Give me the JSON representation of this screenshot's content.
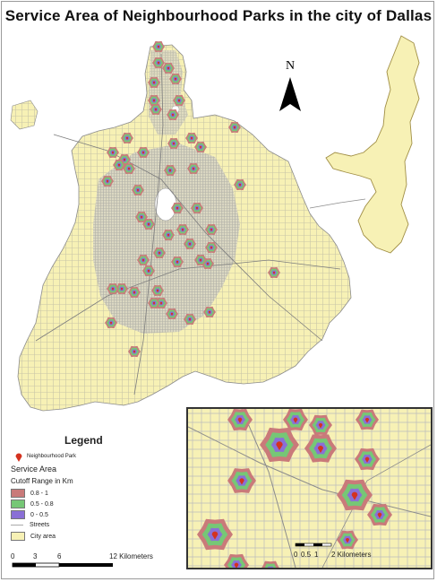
{
  "title": "Service Area of Neighbourhood Parks in the city of Dallas",
  "north_label": "N",
  "legend": {
    "heading": "Legend",
    "park_label": "Neighbourhood Park",
    "service_area_label": "Service Area",
    "cutoff_label": "Cutoff Range in Km",
    "ranges": [
      {
        "label": "0.8 - 1",
        "color": "#c97a7a"
      },
      {
        "label": "0.5 - 0.8",
        "color": "#76c776"
      },
      {
        "label": "0 - 0.5",
        "color": "#8a6fd6"
      }
    ],
    "streets_label": "Streets",
    "city_label": "City area"
  },
  "scale_main": {
    "ticks": [
      "0",
      "3",
      "6",
      "12 Kilometers"
    ]
  },
  "scale_inset": {
    "ticks": [
      "0",
      "0.5",
      "1",
      "2 Kilometers"
    ]
  },
  "colors": {
    "city": "#f7f1b5",
    "street": "#bdbdbd",
    "park": "#d4321f",
    "lake_edge": "#a08e45"
  }
}
